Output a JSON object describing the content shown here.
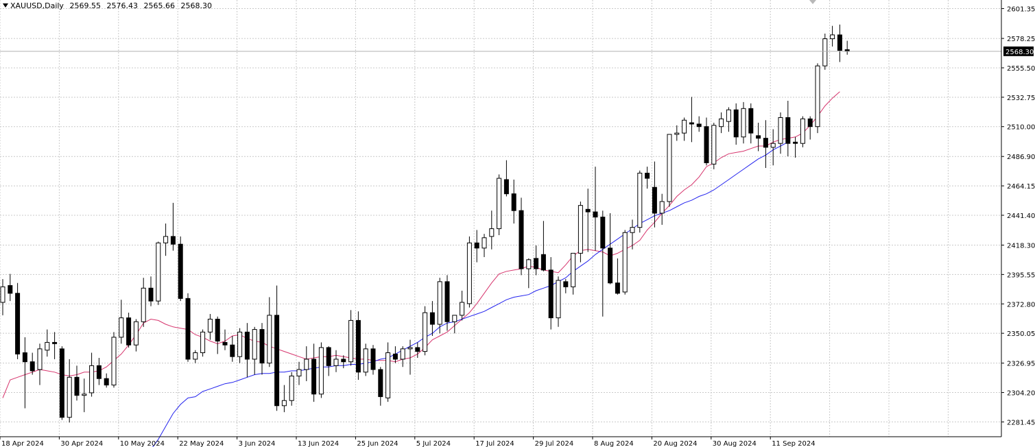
{
  "header": {
    "symbol": "XAUUSD,Daily",
    "ohlc": [
      "2569.55",
      "2576.43",
      "2565.66",
      "2568.30"
    ]
  },
  "current_price_label": "2568.30",
  "colors": {
    "bull_body": "#ffffff",
    "bear_body": "#000000",
    "candle_outline": "#000000",
    "ma_fast": "#d6336c",
    "ma_slow": "#2222ee",
    "grid": "#c8c8c8",
    "background": "#ffffff"
  },
  "chart_data": {
    "type": "candlestick",
    "symbol": "XAUUSD",
    "timeframe": "Daily",
    "ylim": [
      2270,
      2608
    ],
    "y_ticks": [
      "2601.35",
      "2578.25",
      "2555.50",
      "2532.75",
      "2510.00",
      "2486.90",
      "2464.15",
      "2441.40",
      "2418.30",
      "2395.55",
      "2372.80",
      "2350.05",
      "2326.95",
      "2304.20",
      "2281.45"
    ],
    "x_ticks": [
      {
        "label": "18 Apr 2024",
        "index": 0
      },
      {
        "label": "30 Apr 2024",
        "index": 8
      },
      {
        "label": "10 May 2024",
        "index": 16
      },
      {
        "label": "22 May 2024",
        "index": 24
      },
      {
        "label": "3 Jun 2024",
        "index": 32
      },
      {
        "label": "13 Jun 2024",
        "index": 40
      },
      {
        "label": "25 Jun 2024",
        "index": 48
      },
      {
        "label": "5 Jul 2024",
        "index": 56
      },
      {
        "label": "17 Jul 2024",
        "index": 64
      },
      {
        "label": "29 Jul 2024",
        "index": 72
      },
      {
        "label": "8 Aug 2024",
        "index": 80
      },
      {
        "label": "20 Aug 2024",
        "index": 88
      },
      {
        "label": "30 Aug 2024",
        "index": 96
      },
      {
        "label": "11 Sep 2024",
        "index": 104
      }
    ],
    "candles": [
      [
        2374,
        2392,
        2364,
        2386
      ],
      [
        2387,
        2396,
        2375,
        2381
      ],
      [
        2381,
        2389,
        2330,
        2334
      ],
      [
        2335,
        2347,
        2292,
        2328
      ],
      [
        2328,
        2335,
        2318,
        2321
      ],
      [
        2322,
        2342,
        2310,
        2338
      ],
      [
        2337,
        2353,
        2332,
        2343
      ],
      [
        2343,
        2351,
        2330,
        2342
      ],
      [
        2338,
        2340,
        2283,
        2285
      ],
      [
        2285,
        2330,
        2281,
        2316
      ],
      [
        2316,
        2325,
        2298,
        2302
      ],
      [
        2302,
        2315,
        2289,
        2303
      ],
      [
        2304,
        2335,
        2301,
        2325
      ],
      [
        2325,
        2331,
        2310,
        2315
      ],
      [
        2315,
        2319,
        2308,
        2310
      ],
      [
        2310,
        2351,
        2308,
        2347
      ],
      [
        2347,
        2376,
        2342,
        2362
      ],
      [
        2362,
        2366,
        2339,
        2341
      ],
      [
        2341,
        2361,
        2336,
        2359
      ],
      [
        2359,
        2393,
        2355,
        2385
      ],
      [
        2385,
        2394,
        2371,
        2375
      ],
      [
        2375,
        2421,
        2372,
        2420
      ],
      [
        2420,
        2435,
        2410,
        2425
      ],
      [
        2425,
        2451,
        2414,
        2419
      ],
      [
        2419,
        2425,
        2375,
        2377
      ],
      [
        2377,
        2381,
        2328,
        2330
      ],
      [
        2330,
        2337,
        2327,
        2335
      ],
      [
        2335,
        2353,
        2332,
        2351
      ],
      [
        2351,
        2365,
        2345,
        2361
      ],
      [
        2361,
        2363,
        2334,
        2344
      ],
      [
        2343,
        2353,
        2337,
        2341
      ],
      [
        2341,
        2348,
        2328,
        2332
      ],
      [
        2332,
        2354,
        2327,
        2351
      ],
      [
        2351,
        2358,
        2316,
        2330
      ],
      [
        2330,
        2355,
        2318,
        2353
      ],
      [
        2353,
        2358,
        2318,
        2327
      ],
      [
        2327,
        2378,
        2324,
        2364
      ],
      [
        2364,
        2387,
        2290,
        2294
      ],
      [
        2294,
        2310,
        2289,
        2298
      ],
      [
        2298,
        2320,
        2294,
        2317
      ],
      [
        2317,
        2328,
        2310,
        2322
      ],
      [
        2322,
        2340,
        2313,
        2330
      ],
      [
        2330,
        2342,
        2297,
        2303
      ],
      [
        2303,
        2343,
        2300,
        2339
      ],
      [
        2339,
        2340,
        2317,
        2325
      ],
      [
        2325,
        2337,
        2320,
        2330
      ],
      [
        2330,
        2333,
        2323,
        2328
      ],
      [
        2328,
        2368,
        2325,
        2360
      ],
      [
        2360,
        2367,
        2314,
        2320
      ],
      [
        2320,
        2342,
        2317,
        2338
      ],
      [
        2338,
        2341,
        2318,
        2322
      ],
      [
        2322,
        2324,
        2294,
        2301
      ],
      [
        2300,
        2343,
        2297,
        2335
      ],
      [
        2334,
        2340,
        2327,
        2330
      ],
      [
        2330,
        2340,
        2324,
        2338
      ],
      [
        2338,
        2345,
        2318,
        2339
      ],
      [
        2339,
        2343,
        2331,
        2336
      ],
      [
        2336,
        2371,
        2333,
        2366
      ],
      [
        2366,
        2375,
        2348,
        2357
      ],
      [
        2357,
        2393,
        2350,
        2390
      ],
      [
        2390,
        2395,
        2352,
        2359
      ],
      [
        2359,
        2364,
        2350,
        2364
      ],
      [
        2364,
        2383,
        2360,
        2374
      ],
      [
        2373,
        2425,
        2370,
        2420
      ],
      [
        2420,
        2430,
        2405,
        2416
      ],
      [
        2416,
        2427,
        2409,
        2424
      ],
      [
        2425,
        2445,
        2415,
        2431
      ],
      [
        2431,
        2473,
        2426,
        2470
      ],
      [
        2469,
        2484,
        2456,
        2458
      ],
      [
        2458,
        2469,
        2435,
        2445
      ],
      [
        2445,
        2455,
        2395,
        2400
      ],
      [
        2400,
        2408,
        2385,
        2407
      ],
      [
        2408,
        2418,
        2395,
        2400
      ],
      [
        2411,
        2437,
        2398,
        2399
      ],
      [
        2399,
        2409,
        2353,
        2362
      ],
      [
        2362,
        2394,
        2355,
        2391
      ],
      [
        2390,
        2392,
        2381,
        2386
      ],
      [
        2386,
        2412,
        2380,
        2412
      ],
      [
        2412,
        2452,
        2405,
        2449
      ],
      [
        2446,
        2462,
        2413,
        2444
      ],
      [
        2444,
        2479,
        2414,
        2440
      ],
      [
        2440,
        2445,
        2363,
        2416
      ],
      [
        2416,
        2443,
        2388,
        2389
      ],
      [
        2389,
        2408,
        2380,
        2381
      ],
      [
        2382,
        2430,
        2380,
        2428
      ],
      [
        2428,
        2438,
        2415,
        2432
      ],
      [
        2432,
        2476,
        2428,
        2474
      ],
      [
        2474,
        2479,
        2462,
        2470
      ],
      [
        2463,
        2483,
        2432,
        2443
      ],
      [
        2443,
        2458,
        2434,
        2452
      ],
      [
        2452,
        2502,
        2448,
        2504
      ],
      [
        2504,
        2511,
        2499,
        2505
      ],
      [
        2505,
        2517,
        2499,
        2515
      ],
      [
        2513,
        2533,
        2498,
        2512
      ],
      [
        2512,
        2518,
        2506,
        2510
      ],
      [
        2510,
        2517,
        2480,
        2482
      ],
      [
        2481,
        2513,
        2477,
        2511
      ],
      [
        2510,
        2521,
        2505,
        2516
      ],
      [
        2514,
        2525,
        2506,
        2523
      ],
      [
        2523,
        2528,
        2496,
        2502
      ],
      [
        2502,
        2529,
        2497,
        2524
      ],
      [
        2524,
        2528,
        2497,
        2505
      ],
      [
        2503,
        2513,
        2491,
        2501
      ],
      [
        2501,
        2515,
        2478,
        2494
      ],
      [
        2494,
        2508,
        2480,
        2497
      ],
      [
        2497,
        2521,
        2489,
        2517
      ],
      [
        2517,
        2530,
        2487,
        2497
      ],
      [
        2498,
        2502,
        2486,
        2497
      ],
      [
        2497,
        2518,
        2494,
        2516
      ],
      [
        2516,
        2518,
        2500,
        2510
      ],
      [
        2510,
        2559,
        2505,
        2557
      ],
      [
        2557,
        2582,
        2554,
        2578
      ],
      [
        2578,
        2588,
        2572,
        2581
      ],
      [
        2581,
        2589,
        2560,
        2569
      ],
      [
        2569.55,
        2576.43,
        2565.66,
        2568.3
      ]
    ],
    "series": [
      {
        "type": "line",
        "color": "#d6336c",
        "from_index": 0,
        "values": [
          2300,
          2314,
          2316,
          2318,
          2320,
          2322,
          2321,
          2320,
          2318,
          2317,
          2318,
          2320,
          2320,
          2321,
          2324,
          2329,
          2334,
          2341,
          2349,
          2358,
          2361,
          2360,
          2357,
          2355,
          2354,
          2353,
          2349,
          2347,
          2344,
          2342,
          2344,
          2348,
          2349,
          2346,
          2344,
          2343,
          2340,
          2338,
          2336,
          2334,
          2332,
          2330,
          2331,
          2332,
          2332,
          2333,
          2332,
          2331,
          2330,
          2330,
          2329,
          2329,
          2329,
          2328,
          2330,
          2331,
          2334,
          2339,
          2345,
          2348,
          2351,
          2356,
          2361,
          2366,
          2373,
          2381,
          2389,
          2396,
          2398,
          2399,
          2400,
          2402,
          2401,
          2399,
          2398,
          2397,
          2403,
          2410,
          2414,
          2415,
          2414,
          2413,
          2410,
          2412,
          2415,
          2418,
          2422,
          2430,
          2436,
          2443,
          2449,
          2456,
          2461,
          2465,
          2471,
          2479,
          2482,
          2486,
          2489,
          2490,
          2491,
          2493,
          2495,
          2495,
          2498,
          2500,
          2501,
          2502,
          2505,
          2511,
          2518,
          2526,
          2532,
          2537
        ]
      },
      {
        "type": "line",
        "color": "#2222ee",
        "from_index": 19,
        "values": [
          2254,
          2260,
          2268,
          2278,
          2288,
          2295,
          2300,
          2301,
          2305,
          2307,
          2309,
          2311,
          2312,
          2314,
          2316,
          2318,
          2319,
          2319,
          2320,
          2320,
          2321,
          2321,
          2322,
          2323,
          2324,
          2324,
          2325,
          2325,
          2326,
          2326,
          2327,
          2328,
          2330,
          2331,
          2334,
          2337,
          2340,
          2343,
          2347,
          2350,
          2355,
          2358,
          2359,
          2361,
          2363,
          2365,
          2367,
          2370,
          2373,
          2376,
          2378,
          2379,
          2380,
          2383,
          2385,
          2387,
          2390,
          2393,
          2398,
          2402,
          2406,
          2411,
          2415,
          2419,
          2423,
          2427,
          2431,
          2435,
          2438,
          2441,
          2443,
          2445,
          2448,
          2451,
          2453,
          2456,
          2458,
          2461,
          2465,
          2469,
          2473,
          2477,
          2481,
          2485,
          2488,
          2492,
          2495,
          2498
        ]
      }
    ]
  }
}
